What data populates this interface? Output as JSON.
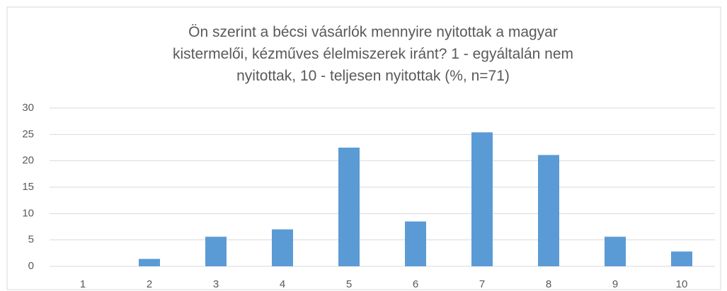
{
  "chart_data": {
    "type": "bar",
    "title": "Ön szerint a bécsi vásárlók mennyire nyitottak a magyar\nkistermelői, kézműves élelmiszerek iránt? 1 - egyáltalán nem\nnyitottak, 10 - teljesen nyitottak (%, n=71)",
    "categories": [
      "1",
      "2",
      "3",
      "4",
      "5",
      "6",
      "7",
      "8",
      "9",
      "10"
    ],
    "values": [
      0,
      1.4,
      5.6,
      7.0,
      22.5,
      8.5,
      25.4,
      21.1,
      5.6,
      2.8
    ],
    "color": "#5b9bd5",
    "ylim": [
      0,
      30
    ],
    "yticks": [
      0,
      5,
      10,
      15,
      20,
      25,
      30
    ],
    "grid": true
  }
}
